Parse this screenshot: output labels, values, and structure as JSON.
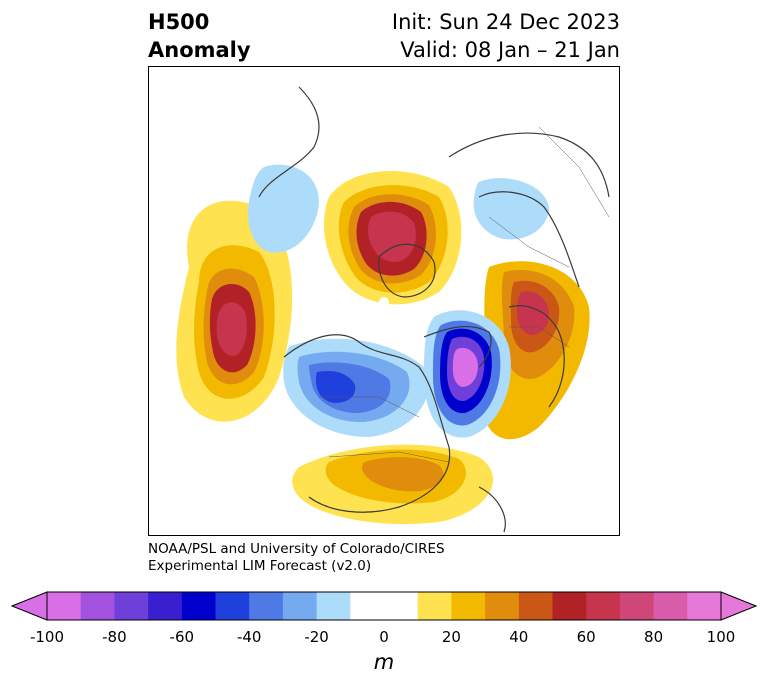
{
  "title": {
    "left_line1": "H500",
    "left_line2": "Anomaly",
    "init": "Init: Sun 24 Dec 2023",
    "valid": "Valid: 08 Jan – 21 Jan"
  },
  "credit": {
    "line1": "NOAA/PSL and University of Colorado/CIRES",
    "line2": "Experimental LIM Forecast (v2.0)"
  },
  "colorbar": {
    "colors": [
      "#d86fe6",
      "#a252de",
      "#6e3fd9",
      "#3a1fd0",
      "#0000cc",
      "#2040dd",
      "#4f7ae6",
      "#76aaf0",
      "#acdcfa",
      "#ffffff",
      "#ffffff",
      "#ffe24f",
      "#f3b900",
      "#e08c0c",
      "#cb5716",
      "#b22126",
      "#c6344e",
      "#cf4778",
      "#d95cab",
      "#e678da"
    ],
    "ticks": [
      "-100",
      "-80",
      "-60",
      "-40",
      "-20",
      "0",
      "20",
      "40",
      "60",
      "80",
      "100"
    ],
    "unit": "m",
    "under_color": "#d86fe6",
    "over_color": "#e678da"
  },
  "map": {
    "projection": "north-polar-stereographic",
    "variable": "500 hPa geopotential height anomaly"
  }
}
